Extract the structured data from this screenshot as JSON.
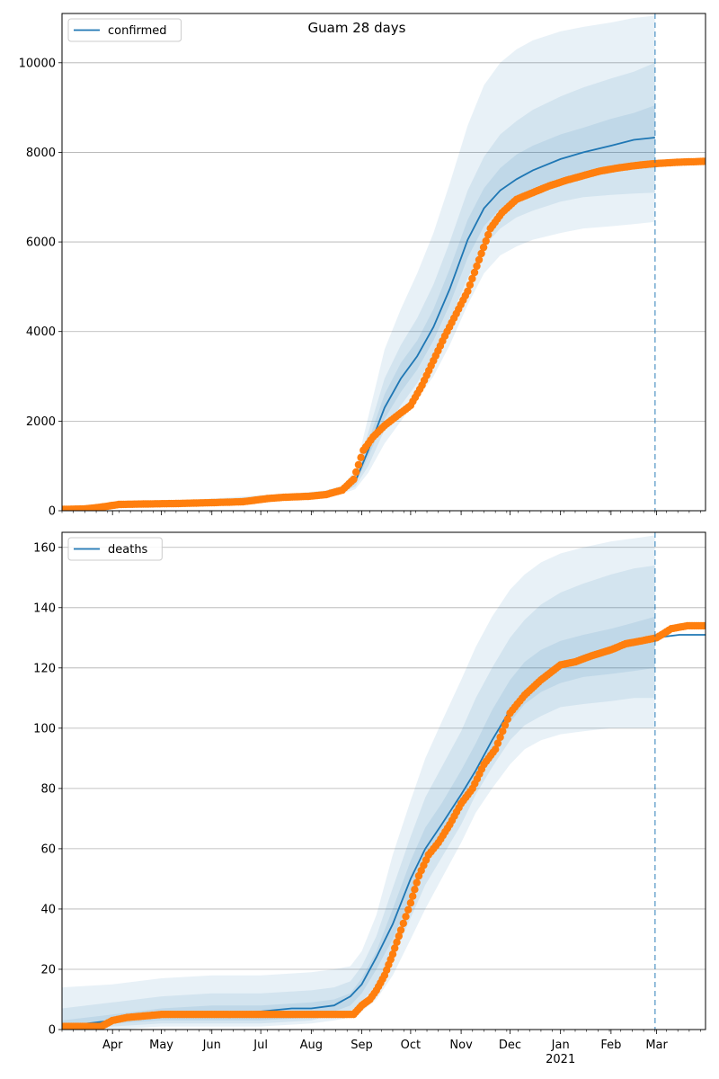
{
  "figure_title": "Guam 28 days",
  "colors": {
    "model": "#1f77b4",
    "observed": "#ff7f0e",
    "band": "#1f77b4",
    "grid": "#b0b0b0",
    "forecast_line": "#1f77b4"
  },
  "chart_data": [
    {
      "type": "line",
      "legend": "confirmed",
      "legend_position": "top-left",
      "grid": "horizontal",
      "xlim": [
        "2020-03-01",
        "2021-03-31"
      ],
      "ylim": [
        0,
        11100
      ],
      "yticks": [
        0,
        2000,
        4000,
        6000,
        8000,
        10000
      ],
      "forecast_date": "2021-02-28",
      "model": {
        "x": [
          "2020-03-01",
          "2020-04-01",
          "2020-05-01",
          "2020-06-01",
          "2020-07-01",
          "2020-07-25",
          "2020-08-10",
          "2020-08-20",
          "2020-08-28",
          "2020-09-05",
          "2020-09-15",
          "2020-09-25",
          "2020-10-05",
          "2020-10-15",
          "2020-10-25",
          "2020-11-05",
          "2020-11-15",
          "2020-11-25",
          "2020-12-05",
          "2020-12-15",
          "2021-01-01",
          "2021-01-15",
          "2021-02-01",
          "2021-02-15",
          "2021-02-28"
        ],
        "y": [
          20,
          120,
          160,
          210,
          290,
          330,
          380,
          460,
          650,
          1350,
          2300,
          2950,
          3450,
          4100,
          4950,
          6050,
          6750,
          7150,
          7400,
          7600,
          7850,
          8000,
          8150,
          8280,
          8330
        ]
      },
      "bands": {
        "x": [
          "2020-03-01",
          "2020-04-01",
          "2020-05-01",
          "2020-06-01",
          "2020-07-01",
          "2020-07-25",
          "2020-08-10",
          "2020-08-20",
          "2020-08-28",
          "2020-09-05",
          "2020-09-15",
          "2020-09-25",
          "2020-10-05",
          "2020-10-15",
          "2020-10-25",
          "2020-11-05",
          "2020-11-15",
          "2020-11-25",
          "2020-12-05",
          "2020-12-15",
          "2021-01-01",
          "2021-01-15",
          "2021-02-01",
          "2021-02-15",
          "2021-02-28"
        ],
        "outer_low": [
          0,
          90,
          130,
          170,
          240,
          280,
          320,
          380,
          480,
          850,
          1500,
          2000,
          2500,
          3000,
          3700,
          4600,
          5300,
          5700,
          5900,
          6050,
          6200,
          6300,
          6350,
          6400,
          6450
        ],
        "outer_high": [
          60,
          170,
          210,
          270,
          350,
          400,
          460,
          560,
          900,
          2100,
          3600,
          4500,
          5300,
          6200,
          7300,
          8600,
          9500,
          10000,
          10300,
          10500,
          10700,
          10800,
          10900,
          11000,
          11050
        ],
        "mid_low": [
          5,
          100,
          140,
          185,
          255,
          300,
          340,
          410,
          540,
          1000,
          1800,
          2350,
          2850,
          3450,
          4250,
          5200,
          5900,
          6300,
          6550,
          6700,
          6900,
          7000,
          7050,
          7080,
          7100
        ],
        "mid_high": [
          45,
          150,
          190,
          245,
          325,
          365,
          420,
          520,
          800,
          1750,
          2950,
          3700,
          4300,
          5050,
          6000,
          7150,
          7900,
          8400,
          8700,
          8950,
          9250,
          9450,
          9650,
          9800,
          10000
        ],
        "inner_low": [
          12,
          110,
          150,
          198,
          275,
          315,
          360,
          435,
          600,
          1200,
          2050,
          2650,
          3150,
          3800,
          4600,
          5650,
          6350,
          6750,
          7000,
          7150,
          7350,
          7480,
          7580,
          7620,
          7650
        ],
        "inner_high": [
          30,
          135,
          175,
          228,
          310,
          350,
          400,
          490,
          720,
          1550,
          2600,
          3300,
          3800,
          4500,
          5400,
          6500,
          7200,
          7650,
          7950,
          8150,
          8400,
          8550,
          8750,
          8880,
          9050
        ]
      },
      "observed": {
        "x": [
          "2020-03-01",
          "2020-03-15",
          "2020-03-25",
          "2020-04-05",
          "2020-04-20",
          "2020-05-10",
          "2020-06-01",
          "2020-06-20",
          "2020-07-05",
          "2020-07-15",
          "2020-07-30",
          "2020-08-10",
          "2020-08-20",
          "2020-08-27",
          "2020-09-02",
          "2020-09-08",
          "2020-09-15",
          "2020-09-22",
          "2020-10-01",
          "2020-10-08",
          "2020-10-15",
          "2020-10-22",
          "2020-10-29",
          "2020-11-05",
          "2020-11-12",
          "2020-11-19",
          "2020-11-26",
          "2020-12-05",
          "2020-12-15",
          "2020-12-25",
          "2021-01-05",
          "2021-01-15",
          "2021-01-25",
          "2021-02-05",
          "2021-02-15",
          "2021-02-25",
          "2021-03-05",
          "2021-03-15",
          "2021-03-31"
        ],
        "y": [
          30,
          40,
          80,
          140,
          150,
          160,
          180,
          200,
          270,
          300,
          320,
          360,
          460,
          700,
          1350,
          1650,
          1900,
          2100,
          2350,
          2800,
          3350,
          3900,
          4400,
          4900,
          5600,
          6300,
          6650,
          6950,
          7100,
          7250,
          7380,
          7480,
          7580,
          7650,
          7700,
          7740,
          7760,
          7780,
          7800
        ]
      }
    },
    {
      "type": "line",
      "legend": "deaths",
      "legend_position": "top-left",
      "grid": "horizontal",
      "xlim": [
        "2020-03-01",
        "2021-03-31"
      ],
      "ylim": [
        0,
        165
      ],
      "yticks": [
        0,
        20,
        40,
        60,
        80,
        100,
        120,
        140,
        160
      ],
      "xticks": [
        "Apr",
        "May",
        "Jun",
        "Jul",
        "Aug",
        "Sep",
        "Oct",
        "Nov",
        "Dec",
        "Jan",
        "Feb",
        "Mar"
      ],
      "xtick_year": "2021",
      "forecast_date": "2021-02-28",
      "model": {
        "x": [
          "2020-03-01",
          "2020-04-01",
          "2020-04-15",
          "2020-05-01",
          "2020-06-01",
          "2020-07-01",
          "2020-07-20",
          "2020-08-01",
          "2020-08-15",
          "2020-08-25",
          "2020-09-01",
          "2020-09-10",
          "2020-09-20",
          "2020-10-01",
          "2020-10-10",
          "2020-10-20",
          "2020-11-01",
          "2020-11-10",
          "2020-11-20",
          "2020-12-01",
          "2020-12-10",
          "2020-12-20",
          "2021-01-01",
          "2021-01-15",
          "2021-02-01",
          "2021-02-15",
          "2021-02-28",
          "2021-03-15",
          "2021-03-31"
        ],
        "y": [
          1,
          3,
          4,
          5,
          5,
          6,
          7,
          7,
          8,
          11,
          15,
          24,
          35,
          50,
          60,
          68,
          78,
          86,
          96,
          106,
          112,
          117,
          121,
          124,
          127,
          129,
          130,
          131,
          131
        ]
      },
      "bands": {
        "x": [
          "2020-03-01",
          "2020-04-01",
          "2020-05-01",
          "2020-06-01",
          "2020-07-01",
          "2020-08-01",
          "2020-08-15",
          "2020-08-25",
          "2020-09-01",
          "2020-09-10",
          "2020-09-20",
          "2020-10-01",
          "2020-10-10",
          "2020-10-20",
          "2020-11-01",
          "2020-11-10",
          "2020-11-20",
          "2020-12-01",
          "2020-12-10",
          "2020-12-20",
          "2021-01-01",
          "2021-01-15",
          "2021-02-01",
          "2021-02-15",
          "2021-02-28"
        ],
        "outer_low": [
          0,
          0,
          1,
          1,
          1,
          2,
          3,
          4,
          6,
          10,
          18,
          30,
          40,
          50,
          62,
          72,
          80,
          88,
          93,
          96,
          98,
          99,
          100,
          100,
          100
        ],
        "outer_high": [
          14,
          15,
          17,
          18,
          18,
          19,
          20,
          21,
          26,
          38,
          58,
          76,
          90,
          102,
          116,
          127,
          137,
          146,
          151,
          155,
          158,
          160,
          162,
          163,
          164
        ],
        "mid_low": [
          0,
          1,
          2,
          2,
          2,
          3,
          5,
          6,
          9,
          15,
          24,
          37,
          48,
          57,
          68,
          78,
          87,
          96,
          101,
          104,
          107,
          108,
          109,
          110,
          110
        ],
        "mid_high": [
          7,
          9,
          11,
          12,
          12,
          13,
          14,
          16,
          21,
          31,
          47,
          64,
          77,
          87,
          99,
          110,
          120,
          130,
          136,
          141,
          145,
          148,
          151,
          153,
          154
        ],
        "inner_low": [
          0,
          2,
          3,
          3,
          3,
          4,
          6,
          8,
          12,
          20,
          30,
          44,
          54,
          63,
          74,
          83,
          93,
          102,
          108,
          112,
          115,
          117,
          118,
          119,
          120
        ],
        "inner_high": [
          3,
          5,
          7,
          8,
          8,
          9,
          10,
          12,
          17,
          26,
          40,
          56,
          67,
          75,
          86,
          95,
          106,
          116,
          122,
          126,
          129,
          131,
          133,
          135,
          137
        ]
      },
      "observed": {
        "x": [
          "2020-03-01",
          "2020-03-25",
          "2020-04-01",
          "2020-04-10",
          "2020-05-01",
          "2020-06-01",
          "2020-07-01",
          "2020-08-01",
          "2020-08-20",
          "2020-08-27",
          "2020-09-01",
          "2020-09-06",
          "2020-09-10",
          "2020-09-15",
          "2020-09-20",
          "2020-09-25",
          "2020-10-01",
          "2020-10-06",
          "2020-10-12",
          "2020-10-18",
          "2020-10-25",
          "2020-11-01",
          "2020-11-08",
          "2020-11-15",
          "2020-11-22",
          "2020-12-01",
          "2020-12-10",
          "2020-12-20",
          "2021-01-01",
          "2021-01-10",
          "2021-01-20",
          "2021-02-01",
          "2021-02-10",
          "2021-02-20",
          "2021-03-01",
          "2021-03-10",
          "2021-03-20",
          "2021-03-31"
        ],
        "y": [
          1,
          1,
          3,
          4,
          5,
          5,
          5,
          5,
          5,
          5,
          8,
          10,
          13,
          18,
          25,
          33,
          42,
          51,
          58,
          62,
          68,
          75,
          80,
          88,
          93,
          105,
          111,
          116,
          121,
          122,
          124,
          126,
          128,
          129,
          130,
          133,
          134,
          134
        ]
      }
    }
  ]
}
